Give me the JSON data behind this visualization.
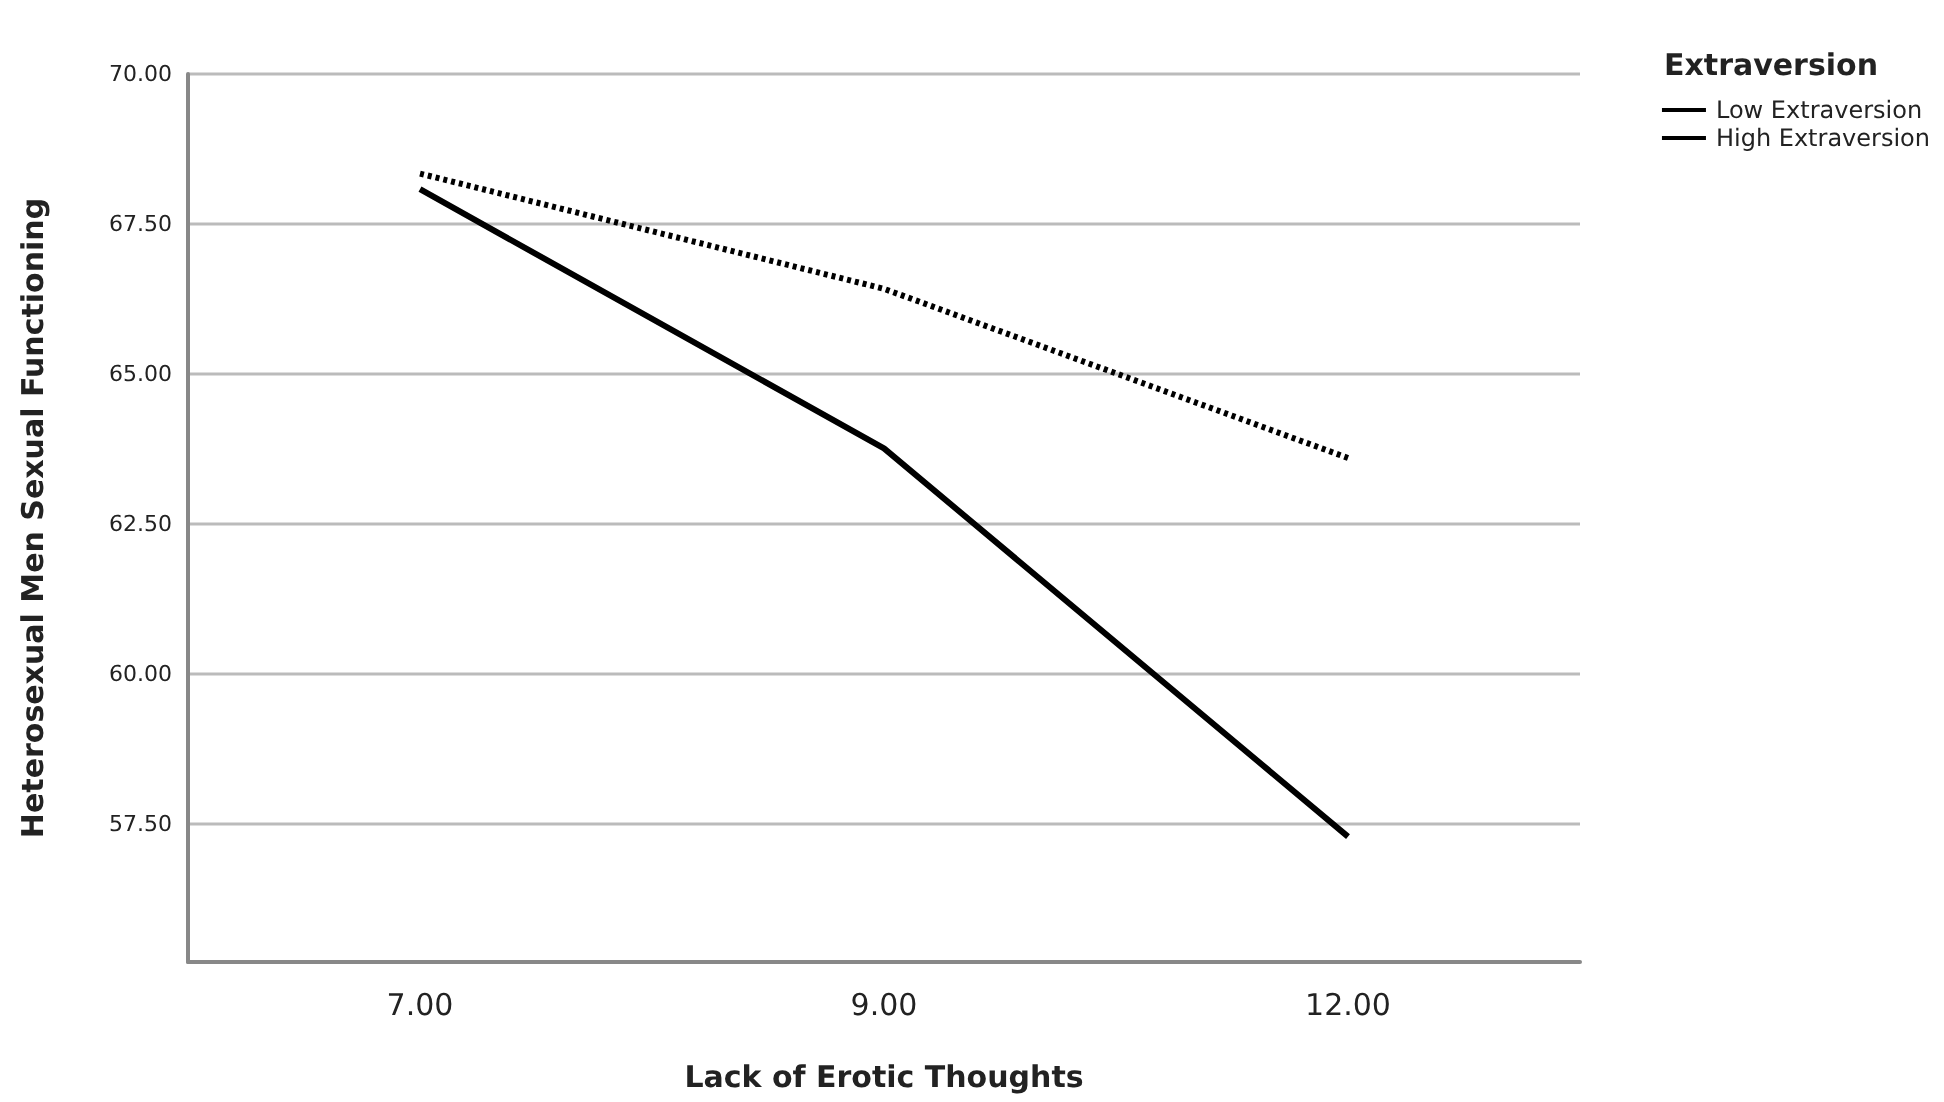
{
  "chart_data": {
    "type": "line",
    "xlabel": "Lack of Erotic Thoughts",
    "ylabel": "Heterosexual Men Sexual Functioning",
    "legend_title": "Extraversion",
    "categories": [
      "7.00",
      "9.00",
      "12.00"
    ],
    "series": [
      {
        "name": "Low Extraversion",
        "color": "#000000",
        "line_style": "solid",
        "values": [
          68.08,
          63.76,
          57.29
        ]
      },
      {
        "name": "High Extraversion",
        "color": "#000000",
        "line_style": "dotted",
        "values": [
          68.34,
          66.42,
          63.6
        ]
      }
    ],
    "ylim": [
      55.2,
      70
    ],
    "yticks": [
      {
        "value": 57.5,
        "label": "57.50"
      },
      {
        "value": 60,
        "label": "60.00"
      },
      {
        "value": 62.5,
        "label": "62.50"
      },
      {
        "value": 65,
        "label": "65.00"
      },
      {
        "value": 67.5,
        "label": "67.50"
      },
      {
        "value": 70,
        "label": "70.00"
      }
    ],
    "grid": "y",
    "legend": "top right",
    "marker": "none"
  }
}
